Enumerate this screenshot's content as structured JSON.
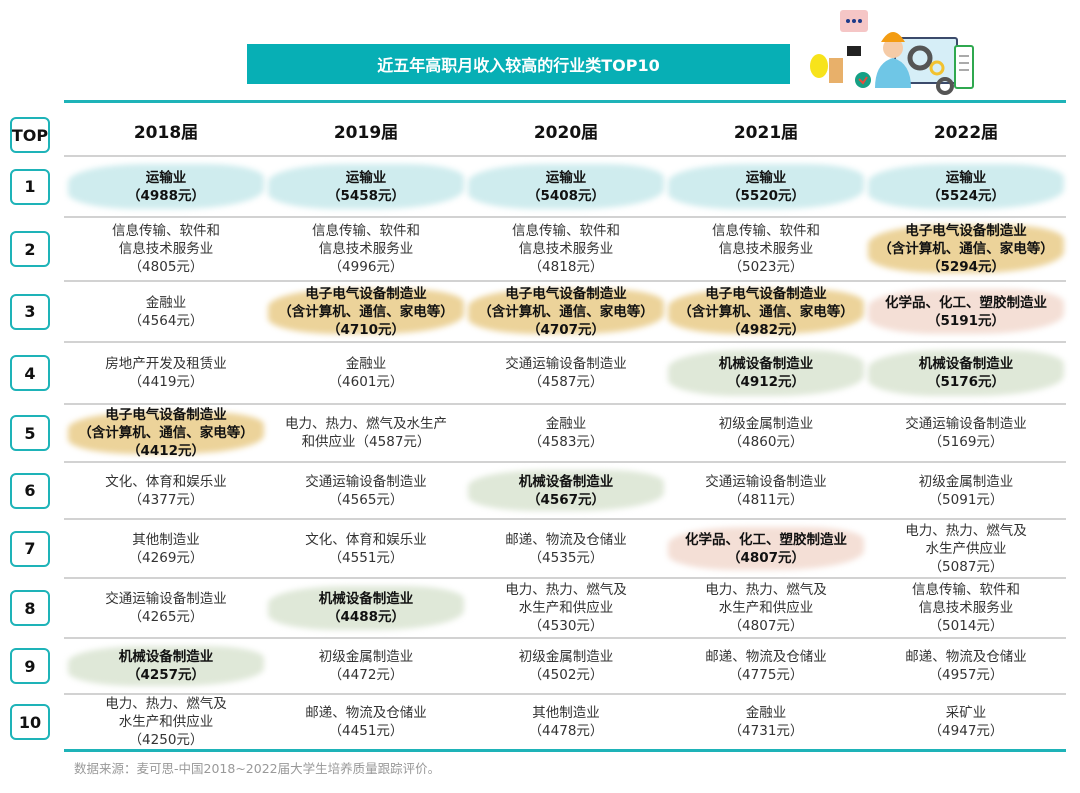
{
  "title": "近五年高职月收入较高的行业类TOP10",
  "top_label": "TOP",
  "years": [
    "2018届",
    "2019届",
    "2020届",
    "2021届",
    "2022届"
  ],
  "highlight_colors": {
    "teal": "#cfecee",
    "gold": "#ecd39a",
    "green": "#dfe8d8",
    "pink": "#f4dfd6"
  },
  "accent_color": "#07afb5",
  "rows": [
    {
      "rank": "1",
      "cells": [
        {
          "lines": [
            "运输业",
            "（4988元）"
          ],
          "highlight": "teal"
        },
        {
          "lines": [
            "运输业",
            "（5458元）"
          ],
          "highlight": "teal"
        },
        {
          "lines": [
            "运输业",
            "（5408元）"
          ],
          "highlight": "teal"
        },
        {
          "lines": [
            "运输业",
            "（5520元）"
          ],
          "highlight": "teal"
        },
        {
          "lines": [
            "运输业",
            "（5524元）"
          ],
          "highlight": "teal"
        }
      ]
    },
    {
      "rank": "2",
      "cells": [
        {
          "lines": [
            "信息传输、软件和",
            "信息技术服务业",
            "（4805元）"
          ]
        },
        {
          "lines": [
            "信息传输、软件和",
            "信息技术服务业",
            "（4996元）"
          ]
        },
        {
          "lines": [
            "信息传输、软件和",
            "信息技术服务业",
            "（4818元）"
          ]
        },
        {
          "lines": [
            "信息传输、软件和",
            "信息技术服务业",
            "（5023元）"
          ]
        },
        {
          "lines": [
            "电子电气设备制造业",
            "（含计算机、通信、家电等）",
            "（5294元）"
          ],
          "highlight": "gold"
        }
      ]
    },
    {
      "rank": "3",
      "cells": [
        {
          "lines": [
            "金融业",
            "（4564元）"
          ]
        },
        {
          "lines": [
            "电子电气设备制造业",
            "（含计算机、通信、家电等）",
            "（4710元）"
          ],
          "highlight": "gold"
        },
        {
          "lines": [
            "电子电气设备制造业",
            "（含计算机、通信、家电等）",
            "（4707元）"
          ],
          "highlight": "gold"
        },
        {
          "lines": [
            "电子电气设备制造业",
            "（含计算机、通信、家电等）",
            "（4982元）"
          ],
          "highlight": "gold"
        },
        {
          "lines": [
            "化学品、化工、塑胶制造业",
            "（5191元）"
          ],
          "highlight": "pink"
        }
      ]
    },
    {
      "rank": "4",
      "cells": [
        {
          "lines": [
            "房地产开发及租赁业",
            "（4419元）"
          ]
        },
        {
          "lines": [
            "金融业",
            "（4601元）"
          ]
        },
        {
          "lines": [
            "交通运输设备制造业",
            "（4587元）"
          ]
        },
        {
          "lines": [
            "机械设备制造业",
            "（4912元）"
          ],
          "highlight": "green"
        },
        {
          "lines": [
            "机械设备制造业",
            "（5176元）"
          ],
          "highlight": "green"
        }
      ]
    },
    {
      "rank": "5",
      "cells": [
        {
          "lines": [
            "电子电气设备制造业",
            "（含计算机、通信、家电等）",
            "（4412元）"
          ],
          "highlight": "gold"
        },
        {
          "lines": [
            "电力、热力、燃气及水生产",
            "和供应业（4587元）"
          ]
        },
        {
          "lines": [
            "金融业",
            "（4583元）"
          ]
        },
        {
          "lines": [
            "初级金属制造业",
            "（4860元）"
          ]
        },
        {
          "lines": [
            "交通运输设备制造业",
            "（5169元）"
          ]
        }
      ]
    },
    {
      "rank": "6",
      "cells": [
        {
          "lines": [
            "文化、体育和娱乐业",
            "（4377元）"
          ]
        },
        {
          "lines": [
            "交通运输设备制造业",
            "（4565元）"
          ]
        },
        {
          "lines": [
            "机械设备制造业",
            "（4567元）"
          ],
          "highlight": "green"
        },
        {
          "lines": [
            "交通运输设备制造业",
            "（4811元）"
          ]
        },
        {
          "lines": [
            "初级金属制造业",
            "（5091元）"
          ]
        }
      ]
    },
    {
      "rank": "7",
      "cells": [
        {
          "lines": [
            "其他制造业",
            "（4269元）"
          ]
        },
        {
          "lines": [
            "文化、体育和娱乐业",
            "（4551元）"
          ]
        },
        {
          "lines": [
            "邮递、物流及仓储业",
            "（4535元）"
          ]
        },
        {
          "lines": [
            "化学品、化工、塑胶制造业",
            "（4807元）"
          ],
          "highlight": "pink"
        },
        {
          "lines": [
            "电力、热力、燃气及",
            "水生产供应业",
            "（5087元）"
          ]
        }
      ]
    },
    {
      "rank": "8",
      "cells": [
        {
          "lines": [
            "交通运输设备制造业",
            "（4265元）"
          ]
        },
        {
          "lines": [
            "机械设备制造业",
            "（4488元）"
          ],
          "highlight": "green"
        },
        {
          "lines": [
            "电力、热力、燃气及",
            "水生产和供应业",
            "（4530元）"
          ]
        },
        {
          "lines": [
            "电力、热力、燃气及",
            "水生产和供应业",
            "（4807元）"
          ]
        },
        {
          "lines": [
            "信息传输、软件和",
            "信息技术服务业",
            "（5014元）"
          ]
        }
      ]
    },
    {
      "rank": "9",
      "cells": [
        {
          "lines": [
            "机械设备制造业",
            "（4257元）"
          ],
          "highlight": "green"
        },
        {
          "lines": [
            "初级金属制造业",
            "（4472元）"
          ]
        },
        {
          "lines": [
            "初级金属制造业",
            "（4502元）"
          ]
        },
        {
          "lines": [
            "邮递、物流及仓储业",
            "（4775元）"
          ]
        },
        {
          "lines": [
            "邮递、物流及仓储业",
            "（4957元）"
          ]
        }
      ]
    },
    {
      "rank": "10",
      "cells": [
        {
          "lines": [
            "电力、热力、燃气及",
            "水生产和供应业",
            "（4250元）"
          ]
        },
        {
          "lines": [
            "邮递、物流及仓储业",
            "（4451元）"
          ]
        },
        {
          "lines": [
            "其他制造业",
            "（4478元）"
          ]
        },
        {
          "lines": [
            "金融业",
            "（4731元）"
          ]
        },
        {
          "lines": [
            "采矿业",
            "（4947元）"
          ]
        }
      ]
    }
  ],
  "source": "数据来源：麦可思-中国2018~2022届大学生培养质量跟踪评价。"
}
